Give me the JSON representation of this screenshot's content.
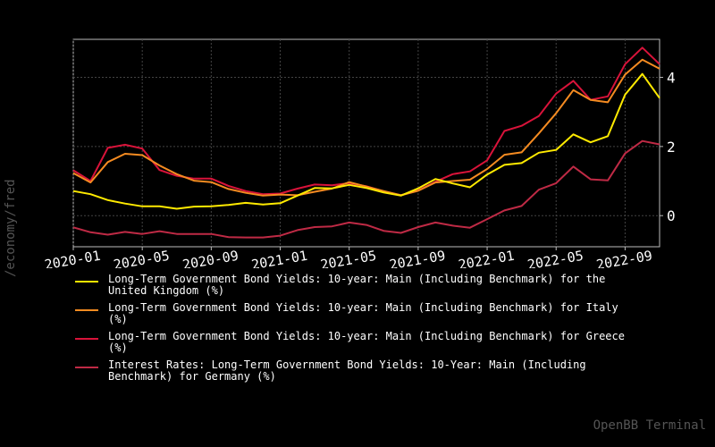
{
  "chart_data": {
    "type": "line",
    "title": "",
    "xlabel": "",
    "ylabel": "",
    "x": [
      "2020-01",
      "2020-02",
      "2020-03",
      "2020-04",
      "2020-05",
      "2020-06",
      "2020-07",
      "2020-08",
      "2020-09",
      "2020-10",
      "2020-11",
      "2020-12",
      "2021-01",
      "2021-02",
      "2021-03",
      "2021-04",
      "2021-05",
      "2021-06",
      "2021-07",
      "2021-08",
      "2021-09",
      "2021-10",
      "2021-11",
      "2021-12",
      "2022-01",
      "2022-02",
      "2022-03",
      "2022-04",
      "2022-05",
      "2022-06",
      "2022-07",
      "2022-08",
      "2022-09",
      "2022-10",
      "2022-11"
    ],
    "xticks": [
      "2020-01",
      "2020-05",
      "2020-09",
      "2021-01",
      "2021-05",
      "2021-09",
      "2022-01",
      "2022-05",
      "2022-09"
    ],
    "yticks": [
      0,
      2,
      4
    ],
    "ylim": [
      -0.9,
      5.1
    ],
    "grid": true,
    "legend_position": "bottom",
    "series": [
      {
        "name": "Long-Term Government Bond Yields: 10-year: Main (Including Benchmark) for the United Kingdom (%)",
        "color": "#ffea00",
        "values": [
          0.71,
          0.62,
          0.45,
          0.35,
          0.27,
          0.27,
          0.2,
          0.26,
          0.27,
          0.31,
          0.37,
          0.32,
          0.36,
          0.58,
          0.8,
          0.79,
          0.89,
          0.8,
          0.67,
          0.58,
          0.79,
          1.06,
          0.93,
          0.82,
          1.19,
          1.47,
          1.52,
          1.82,
          1.9,
          2.35,
          2.12,
          2.3,
          3.5,
          4.1,
          3.4
        ]
      },
      {
        "name": "Long-Term Government Bond Yields: 10-year: Main (Including Benchmark) for Italy (%)",
        "color": "#f58b21",
        "values": [
          1.23,
          0.96,
          1.55,
          1.79,
          1.75,
          1.45,
          1.2,
          1.01,
          0.97,
          0.77,
          0.66,
          0.58,
          0.61,
          0.59,
          0.69,
          0.78,
          0.97,
          0.84,
          0.71,
          0.59,
          0.72,
          0.96,
          1.0,
          1.04,
          1.35,
          1.76,
          1.83,
          2.38,
          2.96,
          3.63,
          3.35,
          3.28,
          4.08,
          4.51,
          4.25
        ]
      },
      {
        "name": "Long-Term Government Bond Yields: 10-year: Main (Including Benchmark) for Greece (%)",
        "color": "#d9133a",
        "values": [
          1.31,
          1.0,
          1.96,
          2.05,
          1.94,
          1.32,
          1.15,
          1.07,
          1.07,
          0.86,
          0.71,
          0.62,
          0.64,
          0.78,
          0.9,
          0.88,
          0.94,
          0.85,
          0.7,
          0.59,
          0.73,
          0.98,
          1.2,
          1.28,
          1.6,
          2.45,
          2.6,
          2.88,
          3.53,
          3.9,
          3.35,
          3.45,
          4.38,
          4.86,
          4.38
        ]
      },
      {
        "name": "Interest Rates: Long-Term Government Bond Yields: 10-Year: Main (Including Benchmark) for Germany (%)",
        "color": "#bf2a45",
        "values": [
          -0.34,
          -0.48,
          -0.55,
          -0.47,
          -0.53,
          -0.45,
          -0.53,
          -0.53,
          -0.53,
          -0.62,
          -0.63,
          -0.63,
          -0.58,
          -0.42,
          -0.33,
          -0.31,
          -0.2,
          -0.27,
          -0.44,
          -0.5,
          -0.33,
          -0.2,
          -0.29,
          -0.35,
          -0.1,
          0.15,
          0.28,
          0.75,
          0.94,
          1.42,
          1.05,
          1.02,
          1.8,
          2.16,
          2.06
        ]
      }
    ]
  },
  "side_label": "/economy/fred",
  "legend": [
    {
      "label": "Long-Term Government Bond Yields: 10-year: Main (Including Benchmark) for the\nUnited Kingdom (%)",
      "color": "#ffea00"
    },
    {
      "label": "Long-Term Government Bond Yields: 10-year: Main (Including Benchmark) for Italy\n(%)",
      "color": "#f58b21"
    },
    {
      "label": "Long-Term Government Bond Yields: 10-year: Main (Including Benchmark) for Greece\n(%)",
      "color": "#d9133a"
    },
    {
      "label": "Interest Rates: Long-Term Government Bond Yields: 10-Year: Main (Including\nBenchmark) for Germany (%)",
      "color": "#bf2a45"
    }
  ],
  "watermark": "OpenBB Terminal"
}
